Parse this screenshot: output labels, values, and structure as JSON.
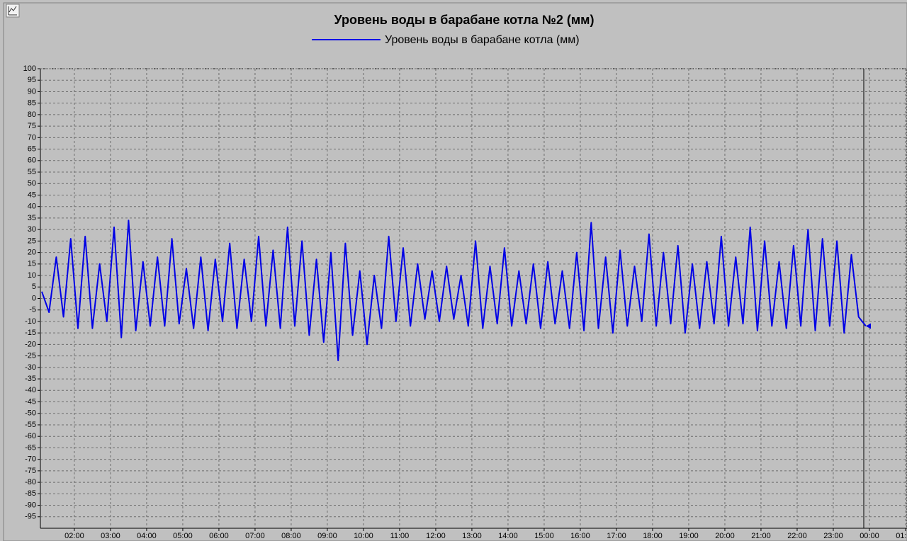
{
  "chart_data": {
    "type": "line",
    "title": "Уровень воды в барабане котла №2 (мм)",
    "x": [
      1.1,
      1.3,
      1.5,
      1.7,
      1.9,
      2.1,
      2.3,
      2.5,
      2.7,
      2.9,
      3.1,
      3.3,
      3.5,
      3.7,
      3.9,
      4.1,
      4.3,
      4.5,
      4.7,
      4.9,
      5.1,
      5.3,
      5.5,
      5.7,
      5.9,
      6.1,
      6.3,
      6.5,
      6.7,
      6.9,
      7.1,
      7.3,
      7.5,
      7.7,
      7.9,
      8.1,
      8.3,
      8.5,
      8.7,
      8.9,
      9.1,
      9.3,
      9.5,
      9.7,
      9.9,
      10.1,
      10.3,
      10.5,
      10.7,
      10.9,
      11.1,
      11.3,
      11.5,
      11.7,
      11.9,
      12.1,
      12.3,
      12.5,
      12.7,
      12.9,
      13.1,
      13.3,
      13.5,
      13.7,
      13.9,
      14.1,
      14.3,
      14.5,
      14.7,
      14.9,
      15.1,
      15.3,
      15.5,
      15.7,
      15.9,
      16.1,
      16.3,
      16.5,
      16.7,
      16.9,
      17.1,
      17.3,
      17.5,
      17.7,
      17.9,
      18.1,
      18.3,
      18.5,
      18.7,
      18.9,
      19.1,
      19.3,
      19.5,
      19.7,
      19.9,
      20.1,
      20.3,
      20.5,
      20.7,
      20.9,
      21.1,
      21.3,
      21.5,
      21.7,
      21.9,
      22.1,
      22.3,
      22.5,
      22.7,
      22.9,
      23.1,
      23.3,
      23.5,
      23.7,
      23.9
    ],
    "series": [
      {
        "name": "Уровень воды в барабане котла (мм)",
        "color": "#0000e6",
        "values": [
          3,
          -6,
          18,
          -8,
          26,
          -13,
          27,
          -13,
          15,
          -10,
          31,
          -17,
          34,
          -14,
          16,
          -12,
          18,
          -12,
          26,
          -11,
          13,
          -13,
          18,
          -14,
          17,
          -10,
          24,
          -13,
          17,
          -10,
          27,
          -12,
          21,
          -13,
          31,
          -12,
          25,
          -16,
          17,
          -19,
          20,
          -27,
          24,
          -16,
          12,
          -20,
          10,
          -13,
          27,
          -10,
          22,
          -12,
          15,
          -9,
          12,
          -10,
          14,
          -9,
          10,
          -12,
          25,
          -13,
          14,
          -11,
          22,
          -12,
          12,
          -11,
          15,
          -13,
          16,
          -11,
          12,
          -13,
          20,
          -14,
          33,
          -13,
          18,
          -15,
          21,
          -12,
          14,
          -10,
          28,
          -12,
          20,
          -11,
          23,
          -15,
          15,
          -13,
          16,
          -11,
          27,
          -12,
          18,
          -11,
          31,
          -14,
          25,
          -12,
          16,
          -13,
          23,
          -12,
          30,
          -14,
          26,
          -12,
          25,
          -15,
          19,
          -8,
          -12
        ]
      }
    ],
    "xlim": [
      1.06,
      25.04
    ],
    "xticks": [
      {
        "value": 2,
        "label": "02:00"
      },
      {
        "value": 3,
        "label": "03:00"
      },
      {
        "value": 4,
        "label": "04:00"
      },
      {
        "value": 5,
        "label": "05:00"
      },
      {
        "value": 6,
        "label": "06:00"
      },
      {
        "value": 7,
        "label": "07:00"
      },
      {
        "value": 8,
        "label": "08:00"
      },
      {
        "value": 9,
        "label": "09:00"
      },
      {
        "value": 10,
        "label": "10:00"
      },
      {
        "value": 11,
        "label": "11:00"
      },
      {
        "value": 12,
        "label": "12:00"
      },
      {
        "value": 13,
        "label": "13:00"
      },
      {
        "value": 14,
        "label": "14:00"
      },
      {
        "value": 15,
        "label": "15:00"
      },
      {
        "value": 16,
        "label": "16:00"
      },
      {
        "value": 17,
        "label": "17:00"
      },
      {
        "value": 18,
        "label": "18:00"
      },
      {
        "value": 19,
        "label": "19:00"
      },
      {
        "value": 20,
        "label": "20:00"
      },
      {
        "value": 21,
        "label": "21:00"
      },
      {
        "value": 22,
        "label": "22:00"
      },
      {
        "value": 23,
        "label": "23:00"
      },
      {
        "value": 24,
        "label": "00:00"
      },
      {
        "value": 25,
        "label": "01:00"
      }
    ],
    "ylim": [
      -100,
      100
    ],
    "yticks": [
      100,
      95,
      90,
      85,
      80,
      75,
      70,
      65,
      60,
      55,
      50,
      45,
      40,
      35,
      30,
      25,
      20,
      15,
      10,
      5,
      0,
      -5,
      -10,
      -15,
      -20,
      -25,
      -30,
      -35,
      -40,
      -45,
      -50,
      -55,
      -60,
      -65,
      -70,
      -75,
      -80,
      -85,
      -90,
      -95
    ],
    "grid": true
  }
}
